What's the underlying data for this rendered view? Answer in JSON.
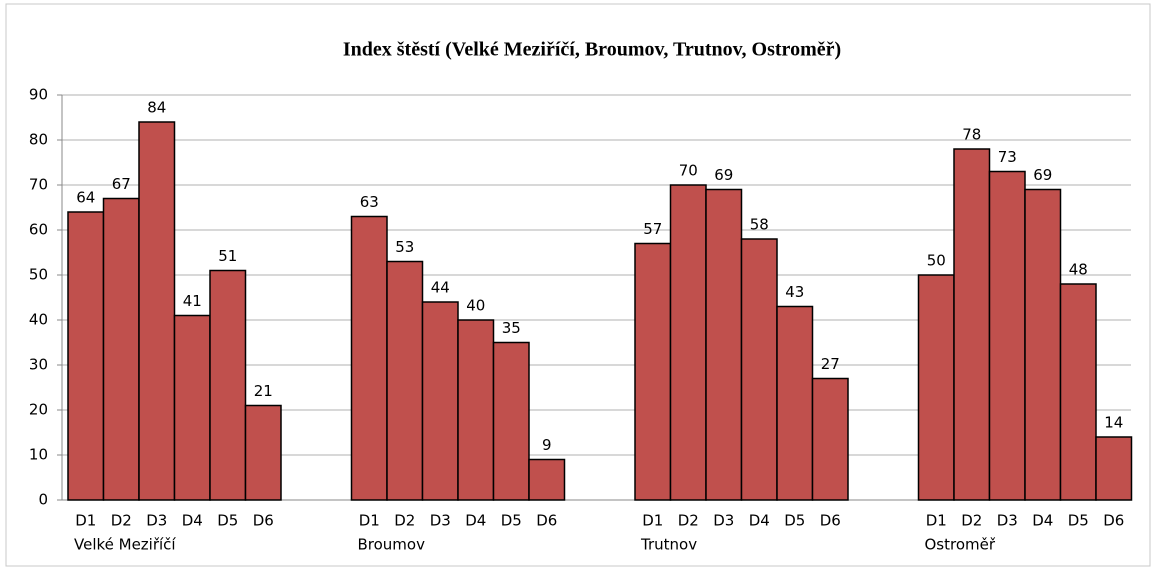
{
  "chart_data": {
    "type": "bar",
    "title": "Index štěstí (Velké Meziříčí, Broumov, Trutnov, Ostroměř)",
    "color": "#c0504d",
    "groups": [
      {
        "name": "Velké Meziříčí",
        "categories": [
          "D1",
          "D2",
          "D3",
          "D4",
          "D5",
          "D6"
        ],
        "values": [
          64,
          67,
          84,
          41,
          51,
          21
        ]
      },
      {
        "name": "Broumov",
        "categories": [
          "D1",
          "D2",
          "D3",
          "D4",
          "D5",
          "D6"
        ],
        "values": [
          63,
          53,
          44,
          40,
          35,
          9
        ]
      },
      {
        "name": "Trutnov",
        "categories": [
          "D1",
          "D2",
          "D3",
          "D4",
          "D5",
          "D6"
        ],
        "values": [
          57,
          70,
          69,
          58,
          43,
          27
        ]
      },
      {
        "name": "Ostroměř",
        "categories": [
          "D1",
          "D2",
          "D3",
          "D4",
          "D5",
          "D6"
        ],
        "values": [
          50,
          78,
          73,
          69,
          48,
          14
        ]
      }
    ],
    "ylim": [
      0,
      90
    ],
    "yticks": [
      0,
      10,
      20,
      30,
      40,
      50,
      60,
      70,
      80,
      90
    ],
    "grid": true
  }
}
